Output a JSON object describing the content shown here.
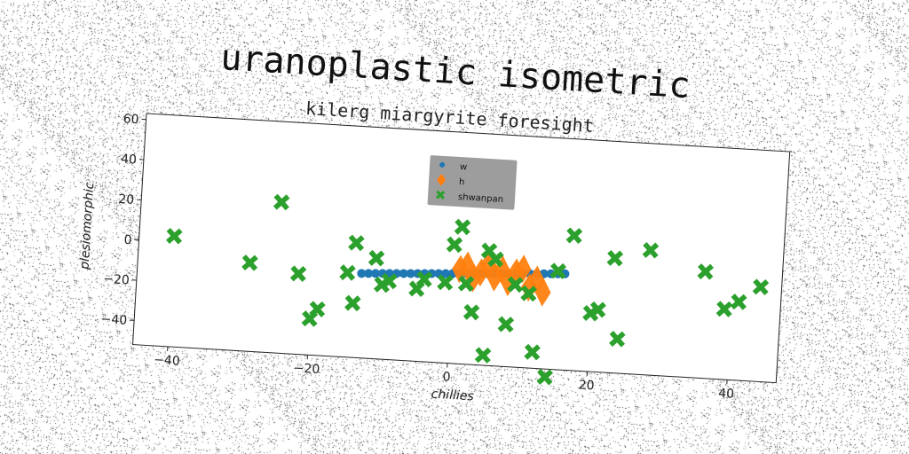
{
  "suptitle": "uranoplastic isometric",
  "chart_data": {
    "type": "scatter",
    "title": "kilerg miargyrite foresight",
    "xlabel": "chillies",
    "ylabel": "plesiomorphic",
    "xlim": [
      -45,
      47
    ],
    "ylim": [
      -52,
      63
    ],
    "xticks": [
      -40,
      -20,
      0,
      20,
      40
    ],
    "yticks": [
      -40,
      -20,
      0,
      20,
      40,
      60
    ],
    "xtick_labels": [
      "−40",
      "−20",
      "0",
      "20",
      "40"
    ],
    "ytick_labels": [
      "−40",
      "−20",
      "0",
      "20",
      "40",
      "60"
    ],
    "grid": false,
    "legend_position": "top-center",
    "series": [
      {
        "name": "w",
        "marker": "circle",
        "color": "#1f77b4",
        "x": [
          -13,
          -12,
          -11,
          -10,
          -9,
          -8,
          -7,
          -6,
          -5,
          -4,
          -3,
          -2,
          -1,
          0,
          1,
          2,
          3,
          4,
          5,
          6,
          7,
          8,
          9,
          10,
          11,
          12,
          13,
          14,
          15,
          16
        ],
        "y": [
          -10,
          -9.8,
          -9.6,
          -9.4,
          -9.2,
          -9,
          -8.8,
          -8.6,
          -8.4,
          -8.2,
          -8,
          -7.8,
          -7.6,
          -7.4,
          -7.2,
          -7,
          -6.8,
          -6.6,
          -6.4,
          -6.2,
          -6,
          -5.8,
          -5.6,
          -5.4,
          -5.2,
          -5,
          -4.8,
          -4.6,
          -4.4,
          -4.2
        ]
      },
      {
        "name": "h",
        "marker": "diamond",
        "color": "#ff7f0e",
        "x": [
          1,
          2,
          3,
          4,
          5,
          6,
          7,
          8,
          9,
          10,
          11,
          12,
          13
        ],
        "y": [
          -5,
          -3,
          -9,
          -6,
          -2,
          -8,
          -4,
          -10,
          -5,
          -3,
          -12,
          -8,
          -14
        ]
      },
      {
        "name": "shwanpan",
        "marker": "x",
        "color": "#2ca02c",
        "x": [
          -40,
          -29,
          -25,
          -22,
          -20,
          -19,
          -15,
          -14,
          -14,
          -11,
          -10,
          -9,
          -5,
          -4,
          -1,
          0,
          1,
          2,
          3,
          5,
          5,
          6,
          8,
          9,
          11,
          12,
          14,
          15,
          17,
          20,
          21,
          23,
          24,
          28,
          36,
          39,
          41,
          44
        ],
        "y": [
          3,
          -8,
          23,
          -12,
          -34,
          -29,
          -10,
          -25,
          5,
          -2,
          -15,
          -13,
          -16,
          -11,
          -12,
          7,
          16,
          -12,
          -26,
          -47,
          5,
          1,
          -31,
          -11,
          -15,
          -44,
          -56,
          -3,
          15,
          -23,
          -21,
          5,
          -35,
          10,
          1,
          -17,
          -13,
          -5
        ]
      }
    ]
  },
  "colors": {
    "w": "#1f77b4",
    "h": "#ff7f0e",
    "shwanpan": "#2ca02c",
    "legend_bg": "#8c8c8c"
  }
}
